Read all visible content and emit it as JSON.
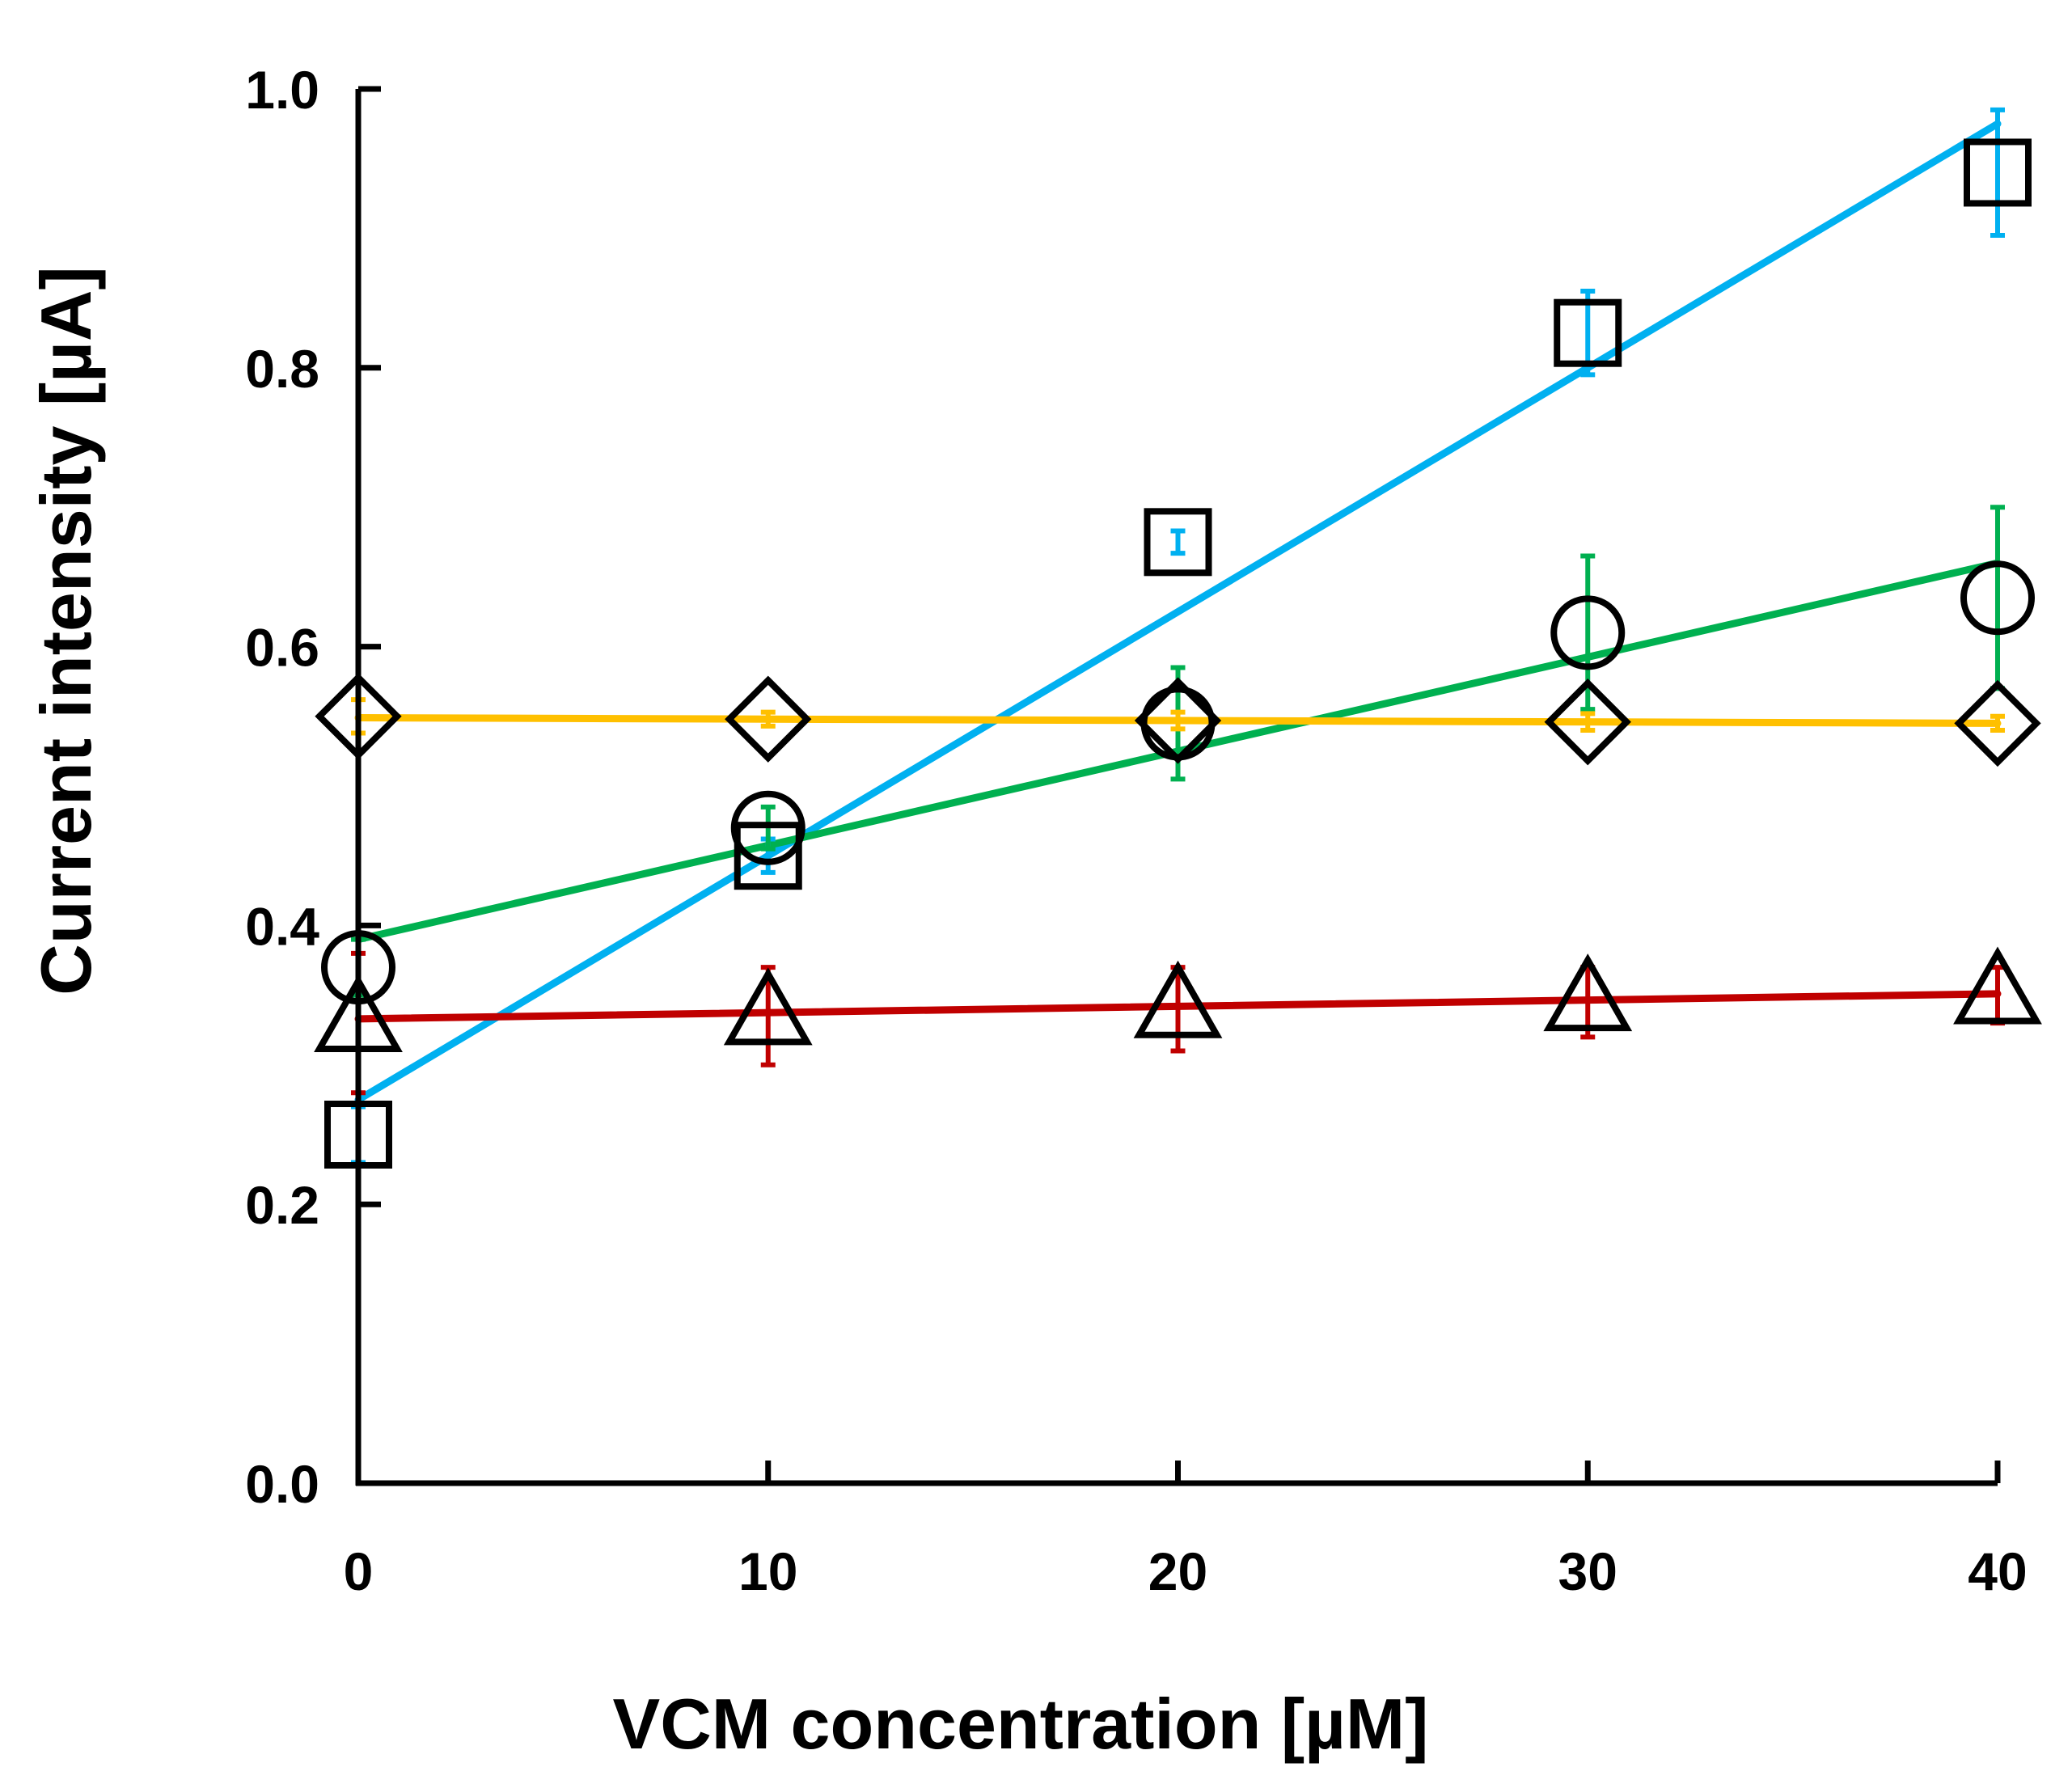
{
  "chart_data": {
    "type": "scatter",
    "xlabel": "VCM concentration [µM]",
    "ylabel": "Current intensity [µA]",
    "xlim": [
      0,
      40
    ],
    "ylim": [
      0,
      1.0
    ],
    "x_ticks": [
      0,
      10,
      20,
      30,
      40
    ],
    "x_tick_labels": [
      "0",
      "10",
      "20",
      "30",
      "40"
    ],
    "y_ticks": [
      0,
      0.2,
      0.4,
      0.6,
      0.8,
      1.0
    ],
    "y_tick_labels": [
      "0.0",
      "0.2",
      "0.4",
      "0.6",
      "0.8",
      "1.0"
    ],
    "grid": false,
    "legend": "none",
    "series": [
      {
        "name": "square",
        "marker": "square",
        "color": "#00b0f0",
        "x": [
          0,
          10,
          20,
          30,
          40
        ],
        "y": [
          0.25,
          0.45,
          0.675,
          0.825,
          0.94
        ],
        "yerr": [
          0.02,
          0.012,
          0.008,
          0.03,
          0.045
        ],
        "fit": [
          [
            0,
            0.275
          ],
          [
            40,
            0.975
          ]
        ]
      },
      {
        "name": "circle",
        "marker": "circle",
        "color": "#00b050",
        "x": [
          0,
          10,
          20,
          30,
          40
        ],
        "y": [
          0.37,
          0.47,
          0.545,
          0.61,
          0.635
        ],
        "yerr": [
          0.02,
          0.015,
          0.04,
          0.055,
          0.065
        ],
        "fit": [
          [
            0,
            0.39
          ],
          [
            40,
            0.66
          ]
        ]
      },
      {
        "name": "diamond",
        "marker": "diamond",
        "color": "#ffc000",
        "x": [
          0,
          10,
          20,
          30,
          40
        ],
        "y": [
          0.55,
          0.548,
          0.547,
          0.546,
          0.545
        ],
        "yerr": [
          0.012,
          0.005,
          0.006,
          0.006,
          0.005
        ],
        "fit": [
          [
            0,
            0.549
          ],
          [
            40,
            0.545
          ]
        ]
      },
      {
        "name": "triangle",
        "marker": "triangle",
        "color": "#c00000",
        "x": [
          0,
          10,
          20,
          30,
          40
        ],
        "y": [
          0.33,
          0.335,
          0.34,
          0.345,
          0.35
        ],
        "yerr": [
          0.05,
          0.035,
          0.03,
          0.025,
          0.02
        ],
        "fit": [
          [
            0,
            0.333
          ],
          [
            40,
            0.351
          ]
        ]
      }
    ]
  }
}
